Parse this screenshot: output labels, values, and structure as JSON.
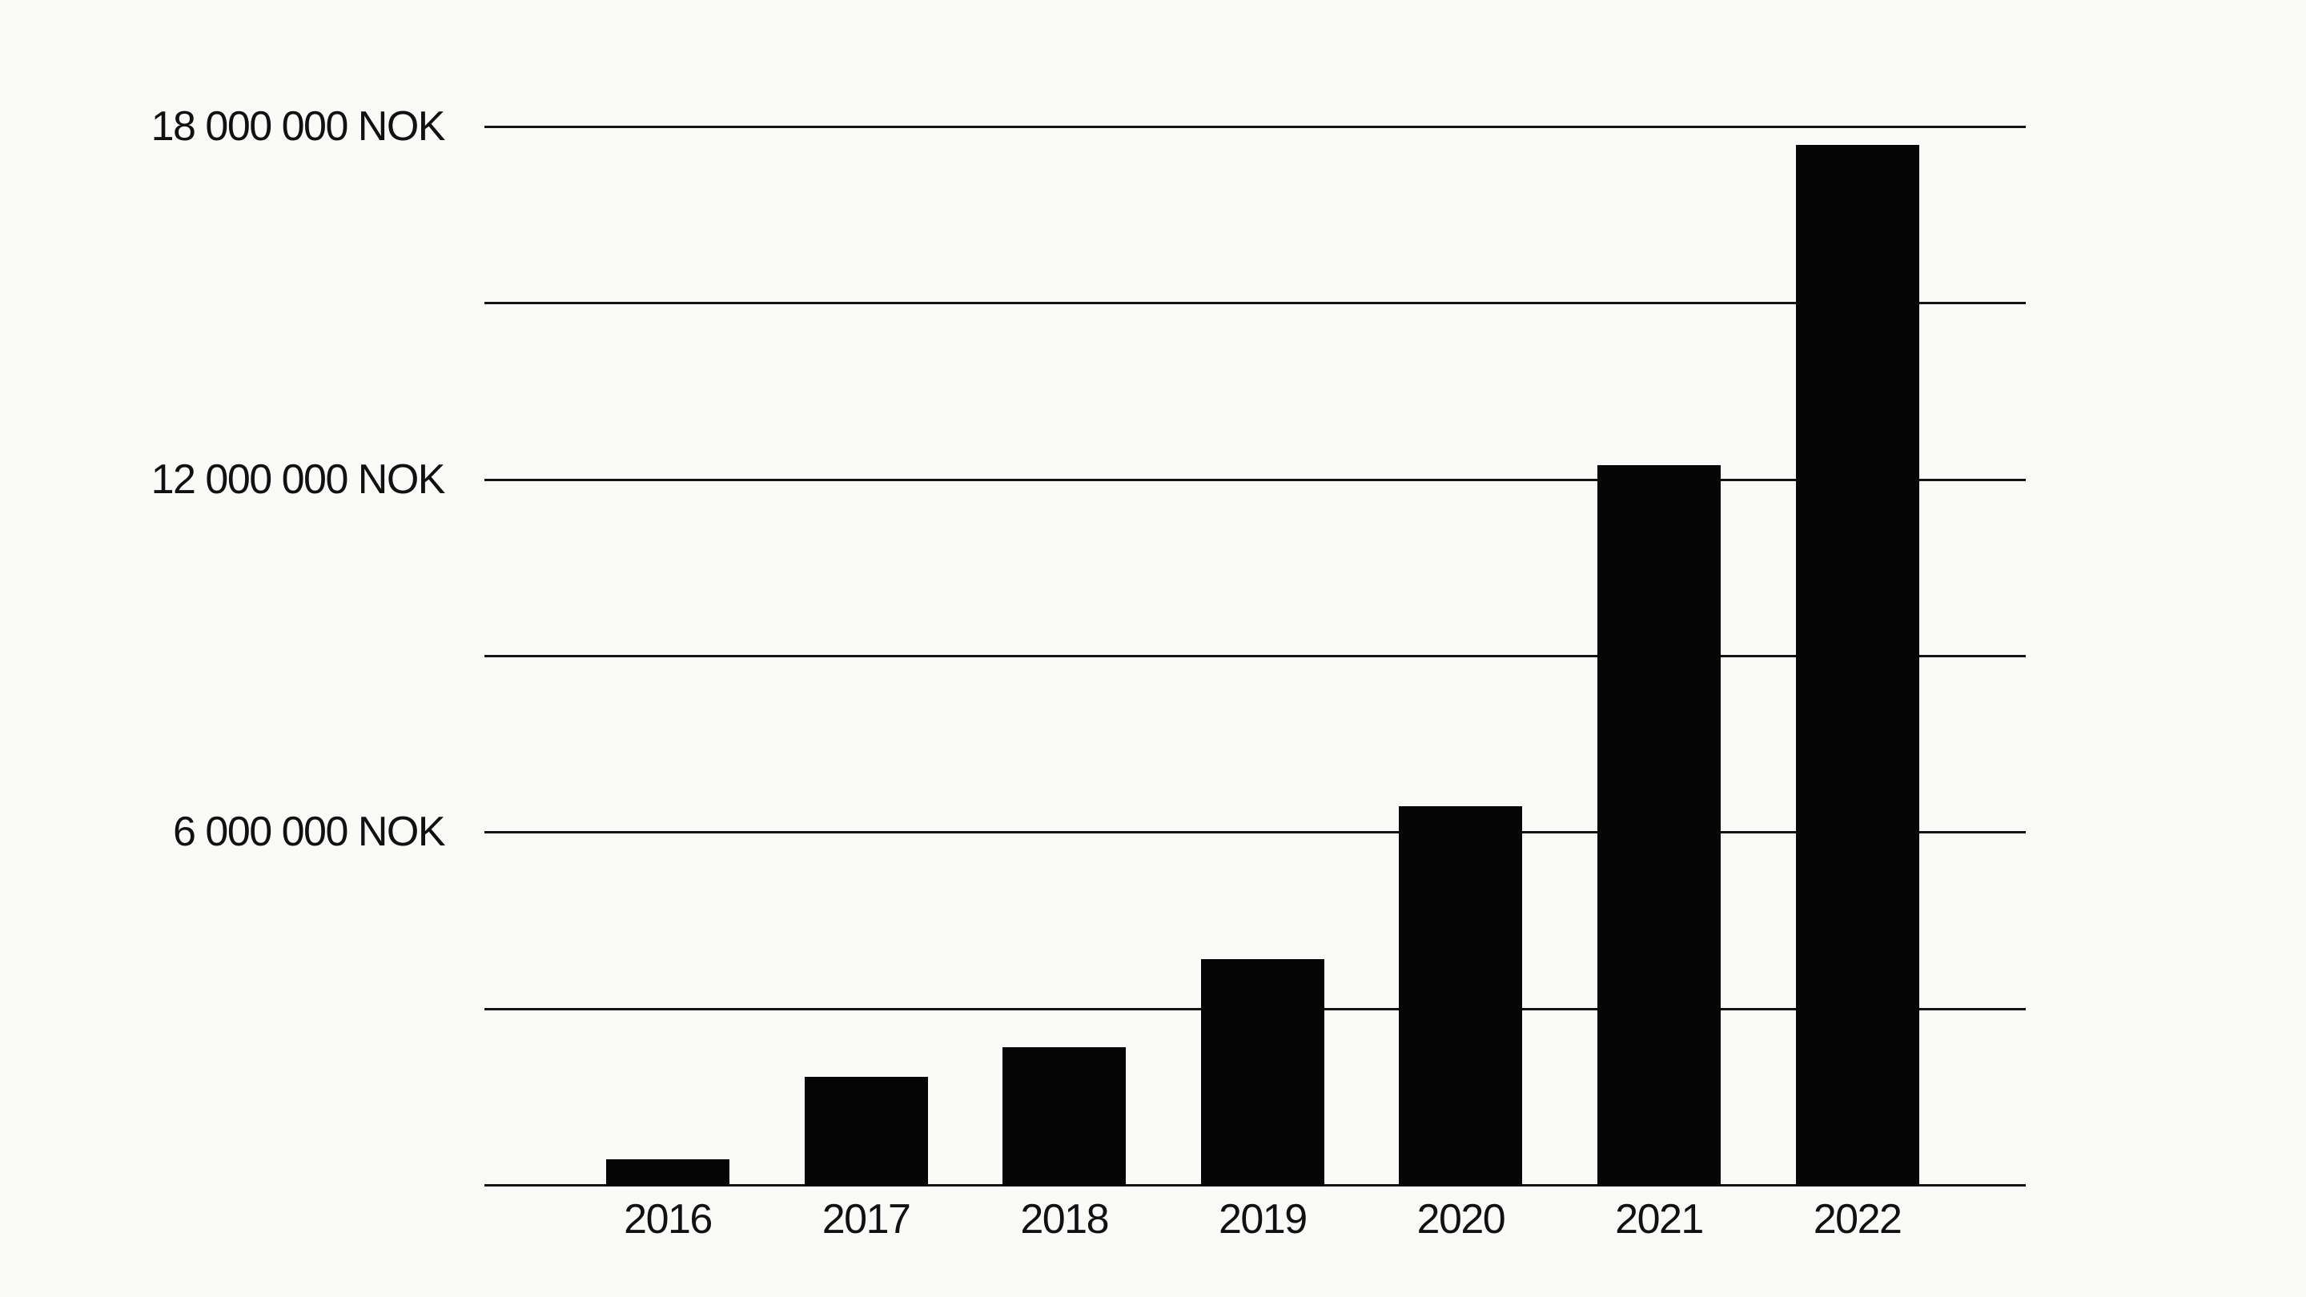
{
  "page": {
    "background_color": "#fafaf9"
  },
  "chart_data": {
    "type": "bar",
    "title": "",
    "xlabel": "",
    "ylabel": "",
    "unit": "NOK",
    "categories": [
      "2016",
      "2017",
      "2018",
      "2019",
      "2020",
      "2021",
      "2022"
    ],
    "values": [
      450000,
      1850000,
      2350000,
      3850000,
      6450000,
      12250000,
      17700000
    ],
    "ylim": [
      0,
      18000000
    ],
    "gridline_step": 3000000,
    "grid": true,
    "legend": "none",
    "bar_color": "#050505",
    "grid_color": "#141414",
    "text_color": "#111111",
    "y_axis_labels": [
      {
        "value": 18000000,
        "label": "18 000 000 NOK"
      },
      {
        "value": 12000000,
        "label": "12 000 000 NOK"
      },
      {
        "value": 6000000,
        "label": "6 000 000 NOK"
      }
    ]
  }
}
